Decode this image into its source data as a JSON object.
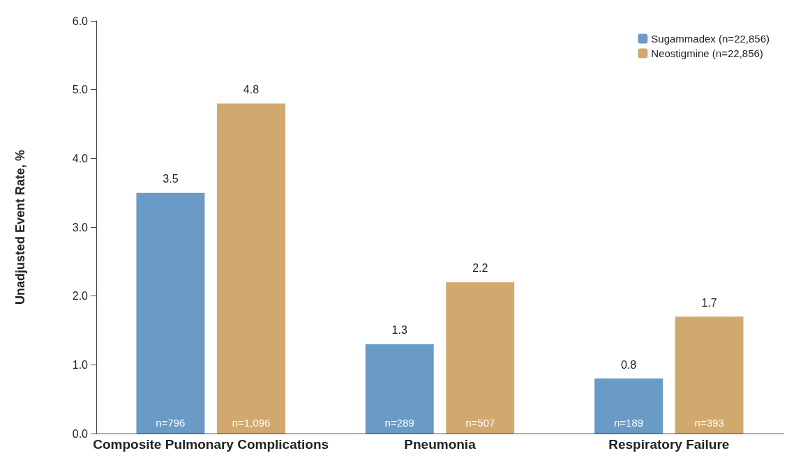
{
  "chart_data": {
    "type": "bar",
    "ylabel": "Unadjusted Event Rate, %",
    "categories": [
      "Composite Pulmonary Complications",
      "Pneumonia",
      "Respiratory Failure"
    ],
    "series": [
      {
        "name": "Sugammadex (n=22,856)",
        "color": "#6a9bc6",
        "values": [
          3.5,
          1.3,
          0.8
        ]
      },
      {
        "name": "Neostigmine (n=22,856)",
        "color": "#d1a96e",
        "values": [
          4.8,
          2.2,
          1.7
        ]
      }
    ],
    "ylim": [
      0,
      6
    ],
    "yticks": [
      {
        "value": 0,
        "label": "0.0"
      },
      {
        "value": 1,
        "label": "1.0"
      },
      {
        "value": 2,
        "label": "2.0"
      },
      {
        "value": 3,
        "label": "3.0"
      },
      {
        "value": 4,
        "label": "4.0"
      },
      {
        "value": 5,
        "label": "5.0"
      },
      {
        "value": 6,
        "label": "6.0"
      }
    ],
    "data_labels": true,
    "legend": "top right",
    "grid": false,
    "annotations": [
      "n=796",
      "n=1,096",
      "n=289",
      "n=507",
      "n=189",
      "n=393"
    ]
  }
}
